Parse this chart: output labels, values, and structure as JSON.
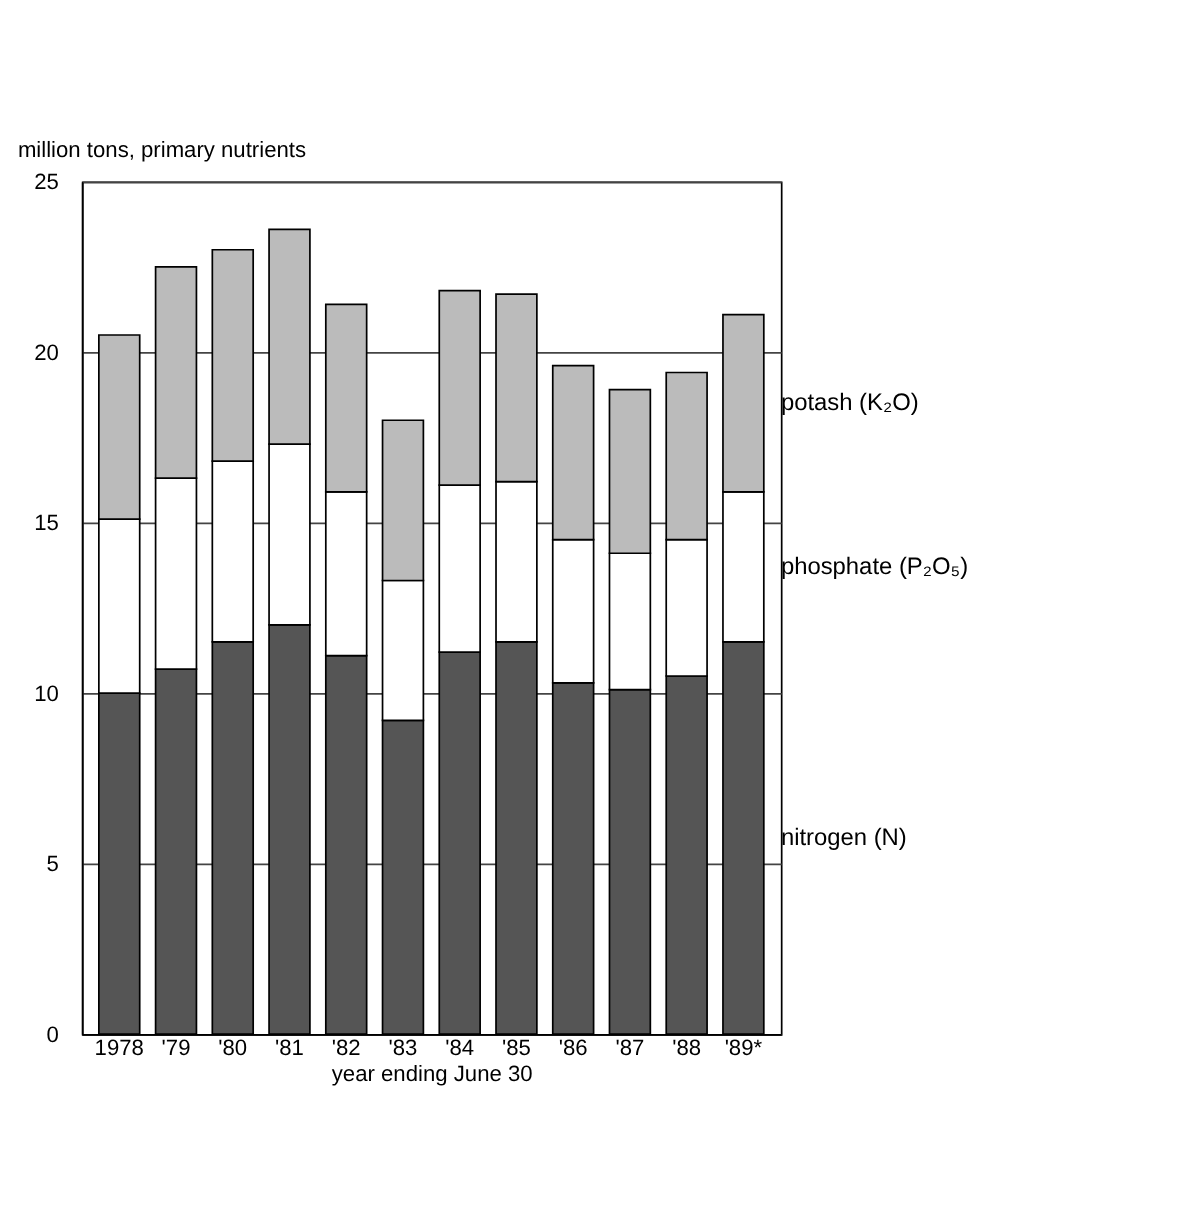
{
  "chart_data": {
    "type": "bar",
    "stacked": true,
    "categories": [
      "1978",
      "'79",
      "'80",
      "'81",
      "'82",
      "'83",
      "'84",
      "'85",
      "'86",
      "'87",
      "'88",
      "'89*"
    ],
    "series": [
      {
        "name": "nitrogen (N)",
        "color": "#555555",
        "values": [
          10.0,
          10.7,
          11.5,
          12.0,
          11.1,
          9.2,
          11.2,
          11.5,
          10.3,
          10.1,
          10.5,
          11.5
        ]
      },
      {
        "name": "phosphate (P₂O₅)",
        "color": "#ffffff",
        "values": [
          5.1,
          5.6,
          5.3,
          5.3,
          4.8,
          4.1,
          4.9,
          4.7,
          4.2,
          4.0,
          4.0,
          4.4
        ]
      },
      {
        "name": "potash (K₂O)",
        "color": "#bbbbbb",
        "values": [
          5.4,
          6.2,
          6.2,
          6.3,
          5.5,
          4.7,
          5.7,
          5.5,
          5.1,
          4.8,
          4.9,
          5.2
        ]
      }
    ],
    "ylabel": "million tons, primary nutrients",
    "xlabel": "year ending June 30",
    "ylim": [
      0,
      25
    ],
    "yticks": [
      0,
      5,
      10,
      15,
      20,
      25
    ],
    "grid": "y",
    "legend": "right"
  }
}
